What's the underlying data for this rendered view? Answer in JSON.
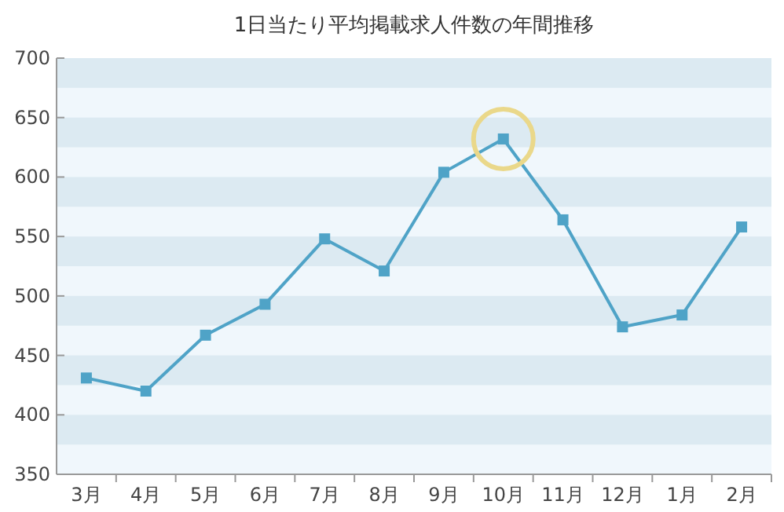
{
  "chart_data": {
    "type": "line",
    "title": "1日当たり平均掲載求人件数の年間推移",
    "categories": [
      "3月",
      "4月",
      "5月",
      "6月",
      "7月",
      "8月",
      "9月",
      "10月",
      "11月",
      "12月",
      "1月",
      "2月"
    ],
    "values": [
      431,
      420,
      467,
      493,
      548,
      521,
      604,
      632,
      564,
      474,
      484,
      558
    ],
    "color": "#4fa3c7",
    "marker": "square",
    "line_style": "solid",
    "bands": [
      {
        "axis": "y",
        "from": 375,
        "to": 400,
        "color": "#dceaf2"
      },
      {
        "axis": "y",
        "from": 425,
        "to": 450,
        "color": "#dceaf2"
      },
      {
        "axis": "y",
        "from": 475,
        "to": 500,
        "color": "#dceaf2"
      },
      {
        "axis": "y",
        "from": 525,
        "to": 550,
        "color": "#dceaf2"
      },
      {
        "axis": "y",
        "from": 575,
        "to": 600,
        "color": "#dceaf2"
      },
      {
        "axis": "y",
        "from": 625,
        "to": 650,
        "color": "#dceaf2"
      },
      {
        "axis": "y",
        "from": 675,
        "to": 700,
        "color": "#dceaf2"
      }
    ],
    "ylim": [
      350,
      700
    ],
    "yticks": [
      350,
      400,
      450,
      500,
      550,
      600,
      650,
      700
    ]
  }
}
